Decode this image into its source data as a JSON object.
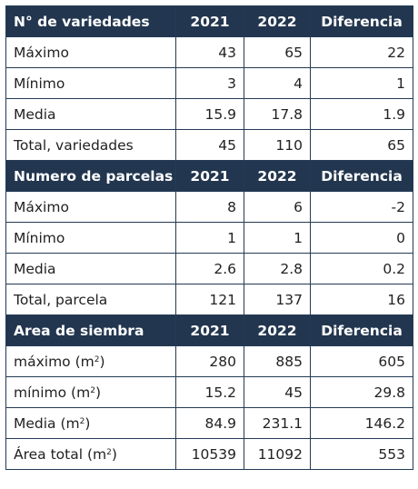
{
  "sections": [
    {
      "header": [
        "N° de variedades",
        "2021",
        "2022",
        "Diferencia"
      ],
      "rows": [
        [
          "Máximo",
          "43",
          "65",
          "22"
        ],
        [
          "Mínimo",
          "3",
          "4",
          "1"
        ],
        [
          "Media",
          "15.9",
          "17.8",
          "1.9"
        ],
        [
          "Total, variedades",
          "45",
          "110",
          "65"
        ]
      ]
    },
    {
      "header": [
        "Numero de parcelas",
        "2021",
        "2022",
        "Diferencia"
      ],
      "rows": [
        [
          "Máximo",
          "8",
          "6",
          "-2"
        ],
        [
          "Mínimo",
          "1",
          "1",
          "0"
        ],
        [
          "Media",
          "2.6",
          "2.8",
          "0.2"
        ],
        [
          "Total, parcela",
          "121",
          "137",
          "16"
        ]
      ]
    },
    {
      "header": [
        "Area de siembra",
        "2021",
        "2022",
        "Diferencia"
      ],
      "rows": [
        [
          "máximo (m²)",
          "280",
          "885",
          "605"
        ],
        [
          "mínimo (m²)",
          "15.2",
          "45",
          "29.8"
        ],
        [
          "Media (m²)",
          "84.9",
          "231.1",
          "146.2"
        ],
        [
          "Área total (m²)",
          "10539",
          "11092",
          "553"
        ]
      ]
    }
  ]
}
